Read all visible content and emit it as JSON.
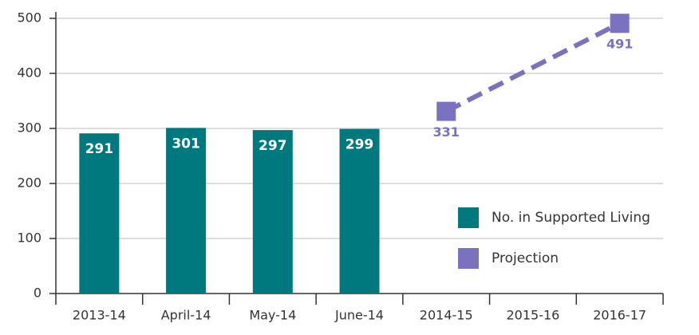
{
  "chart_data": {
    "type": "bar",
    "categories": [
      "2013-14",
      "April-14",
      "May-14",
      "June-14",
      "2014-15",
      "2015-16",
      "2016-17"
    ],
    "series": [
      {
        "name": "No. in Supported Living",
        "type": "bar",
        "color": "#00797e",
        "values": [
          291,
          301,
          297,
          299,
          null,
          null,
          null
        ]
      },
      {
        "name": "Projection",
        "type": "line",
        "color": "#7a72c0",
        "values": [
          null,
          null,
          null,
          null,
          331,
          411,
          491
        ],
        "value_labels": [
          null,
          null,
          null,
          null,
          "331",
          null,
          "491"
        ]
      }
    ],
    "ylim": [
      0,
      500
    ],
    "yticks": [
      0,
      100,
      200,
      300,
      400,
      500
    ],
    "grid": true
  }
}
